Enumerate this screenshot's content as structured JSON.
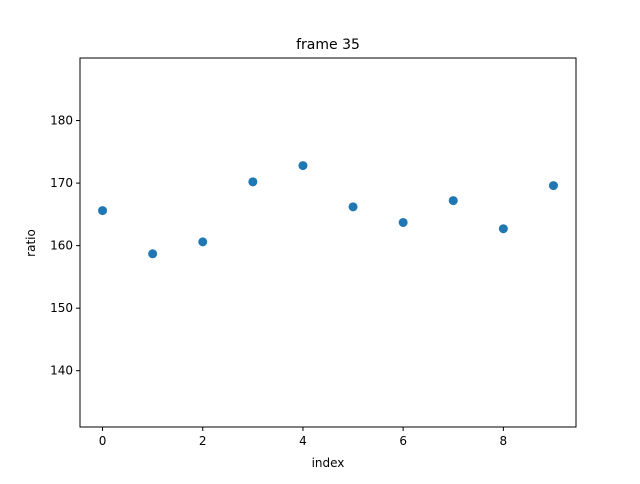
{
  "chart_data": {
    "type": "scatter",
    "title": "frame 35",
    "xlabel": "index",
    "ylabel": "ratio",
    "x": [
      0,
      1,
      2,
      3,
      4,
      5,
      6,
      7,
      8,
      9
    ],
    "y": [
      165.6,
      158.7,
      160.6,
      170.2,
      172.8,
      166.2,
      163.7,
      167.2,
      162.7,
      169.6
    ],
    "xlim": [
      -0.45,
      9.45
    ],
    "ylim": [
      131,
      190
    ],
    "xticks": [
      0,
      2,
      4,
      6,
      8
    ],
    "yticks": [
      140,
      150,
      160,
      170,
      180
    ],
    "marker_color": "#1f77b4",
    "grid": false
  }
}
